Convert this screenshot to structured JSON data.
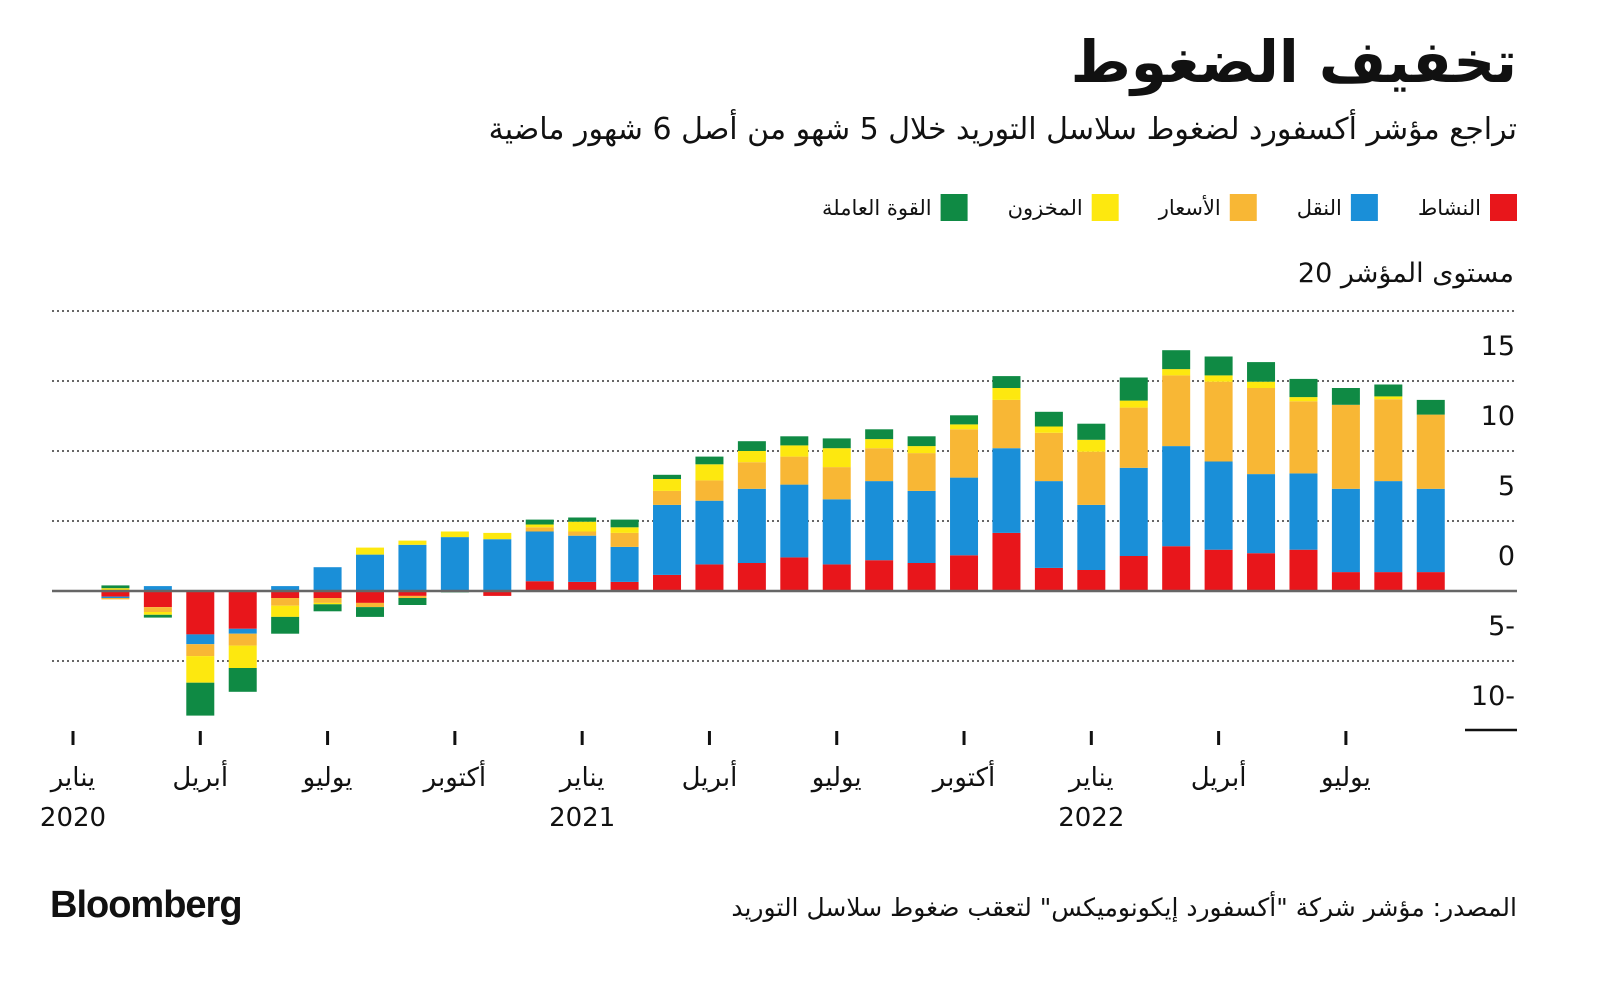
{
  "chart_data": {
    "type": "stacked-bar",
    "title": "تخفيف الضغوط",
    "subtitle": "تراجع مؤشر أكسفورد لضغوط سلاسل التوريد خلال 5 شهو من أصل 6 شهور ماضية",
    "y_axis_title": "مستوى المؤشر 20",
    "source": "المصدر: مؤشر شركة \"أكسفورد إيكونوميكس\" لتعقب ضغوط سلاسل التوريد",
    "brand": "Bloomberg",
    "categories": [
      "يناير 2020",
      null,
      null,
      "أبريل",
      null,
      null,
      "يوليو",
      null,
      null,
      "أكتوبر",
      null,
      null,
      "يناير 2021",
      null,
      null,
      "أبريل",
      null,
      null,
      "يوليو",
      null,
      null,
      "أكتوبر",
      null,
      null,
      "يناير 2022",
      null,
      null,
      "أبريل",
      null,
      null,
      "يوليو",
      null,
      null
    ],
    "ylim": [
      -10,
      20
    ],
    "yticks": [
      {
        "value": -10,
        "label": "10-"
      },
      {
        "value": -5,
        "label": "5-"
      },
      0,
      5,
      10,
      15
    ],
    "grid": true,
    "series": [
      {
        "name": "النشاط",
        "color": "#e8161b",
        "values": [
          null,
          -0.4,
          -1.15,
          -3.1,
          -2.7,
          -0.5,
          -0.5,
          -0.85,
          -0.35,
          0.05,
          -0.35,
          0.7,
          0.65,
          0.65,
          1.15,
          1.9,
          2.0,
          2.4,
          1.9,
          2.2,
          2.0,
          2.55,
          4.15,
          1.65,
          1.5,
          2.5,
          3.2,
          2.95,
          2.7,
          2.95,
          1.35,
          1.35,
          1.35
        ]
      },
      {
        "name": "النقل",
        "color": "#1a8fd8",
        "values": [
          null,
          -0.1,
          0.35,
          -0.7,
          -0.35,
          0.35,
          1.7,
          2.6,
          3.3,
          3.8,
          3.7,
          3.55,
          3.3,
          2.5,
          5.0,
          4.55,
          5.3,
          5.2,
          4.65,
          5.65,
          5.15,
          5.55,
          6.05,
          6.2,
          4.65,
          6.3,
          7.15,
          6.3,
          5.65,
          5.45,
          5.95,
          6.5,
          5.95
        ]
      },
      {
        "name": "الأسعار",
        "color": "#f8b735",
        "values": [
          null,
          -0.1,
          -0.35,
          -0.85,
          -0.85,
          -0.55,
          -0.35,
          -0.3,
          -0.15,
          0,
          0,
          0.3,
          0.3,
          1.0,
          1.0,
          1.45,
          1.9,
          2.0,
          2.3,
          2.35,
          2.7,
          3.45,
          3.45,
          3.45,
          3.8,
          4.3,
          5.05,
          5.7,
          6.15,
          5.15,
          6.0,
          5.85,
          5.3
        ]
      },
      {
        "name": "المخزون",
        "color": "#fde80f",
        "values": [
          null,
          0.2,
          -0.2,
          -1.9,
          -1.6,
          -0.8,
          -0.1,
          0.5,
          0.3,
          0.4,
          0.45,
          0.2,
          0.7,
          0.4,
          0.85,
          1.15,
          0.8,
          0.8,
          1.35,
          0.65,
          0.5,
          0.35,
          0.85,
          0.45,
          0.85,
          0.5,
          0.45,
          0.45,
          0.45,
          0.3,
          0,
          0.2,
          0
        ]
      },
      {
        "name": "القوة العاملة",
        "color": "#0f8a44",
        "values": [
          null,
          0.2,
          -0.2,
          -2.35,
          -1.7,
          -1.2,
          -0.5,
          -0.7,
          -0.5,
          -0.1,
          0,
          0.35,
          0.3,
          0.55,
          0.3,
          0.55,
          0.7,
          0.65,
          0.7,
          0.7,
          0.7,
          0.65,
          0.85,
          1.05,
          1.15,
          1.65,
          1.35,
          1.35,
          1.4,
          1.3,
          1.2,
          0.85,
          1.05
        ]
      }
    ]
  }
}
